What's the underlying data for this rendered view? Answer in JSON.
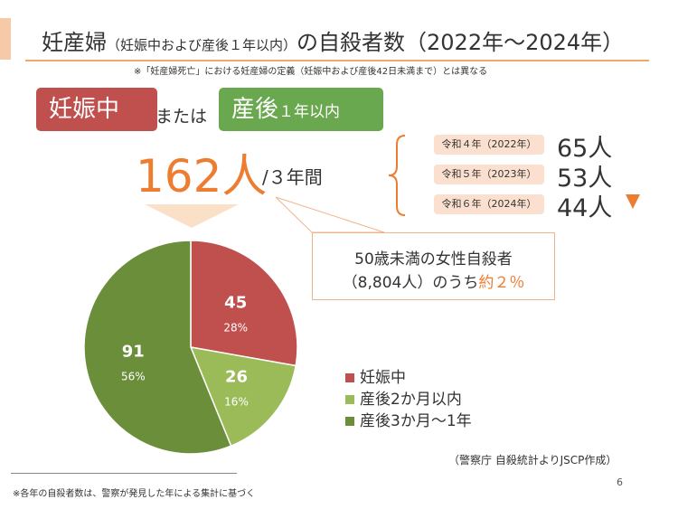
{
  "title": {
    "main": "妊産婦",
    "sub": "（妊娠中および産後１年以内）",
    "rest": "の自殺者数（2022年～2024年）"
  },
  "note": "※「妊産婦死亡」における妊産婦の定義（妊娠中および産後42日未満まで）とは異なる",
  "badges": {
    "pregnant": "妊娠中",
    "or": "または",
    "postpartum_main": "産後",
    "postpartum_small": "１年以内"
  },
  "total": {
    "value": "162人",
    "per": "/３年間"
  },
  "years": [
    {
      "label": "令和４年（2022年）",
      "count": "65人"
    },
    {
      "label": "令和５年（2023年）",
      "count": "53人"
    },
    {
      "label": "令和６年（2024年）",
      "count": "44人"
    }
  ],
  "callout": {
    "line1": "50歳未満の女性自殺者",
    "line2": "（8,804人）のうち",
    "highlight": "約２％"
  },
  "source": "（警察庁 自殺統計よりJSCP作成）",
  "page_number": "6",
  "footnote": "※各年の自殺者数は、警察が発見した年による集計に基づく",
  "chart_data": {
    "type": "pie",
    "categories": [
      "妊娠中",
      "産後2か月以内",
      "産後3か月～1年"
    ],
    "values": [
      45,
      26,
      91
    ],
    "percent_labels": [
      "28%",
      "16%",
      "56%"
    ],
    "colors": [
      "#c0504d",
      "#9bbb59",
      "#6b8e3a"
    ],
    "legend_position": "right"
  }
}
